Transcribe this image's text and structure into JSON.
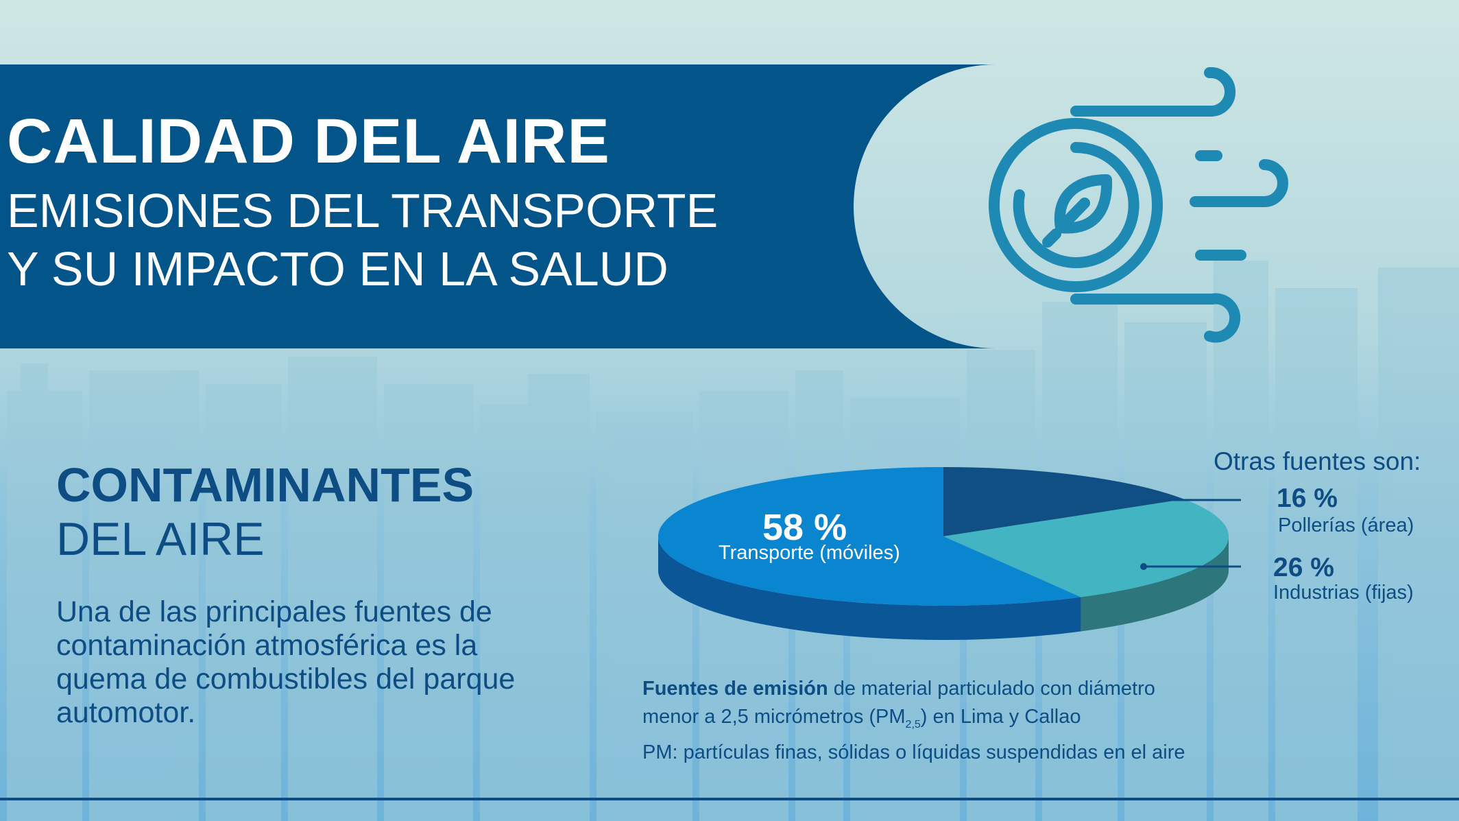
{
  "banner": {
    "title": "CALIDAD DEL AIRE",
    "subtitle_line1": "EMISIONES DEL TRANSPORTE",
    "subtitle_line2": "Y SU IMPACTO EN LA SALUD"
  },
  "section": {
    "title": "CONTAMINANTES",
    "subtitle": "DEL AIRE",
    "body": "Una de las principales fuentes de contaminación atmosférica es la quema de combustibles del parque automotor."
  },
  "legend": {
    "heading": "Otras fuentes son:"
  },
  "caption": {
    "bold": "Fuentes de emisión",
    "line1_rest": " de material particulado con diámetro",
    "line2_before": "menor a 2,5 micrómetros (PM",
    "line2_sub": "2,5",
    "line2_after": ") en Lima y Callao",
    "line3": "PM: partículas finas, sólidas o líquidas suspendidas en el aire"
  },
  "icons": {
    "banner_icon": "leaf-wind-circle-icon"
  },
  "colors": {
    "banner": "#035489",
    "navy_text": "#0d4d84",
    "icon": "#1e8ab4",
    "transport_top": "#0a86d0",
    "transport_side": "#0a5696",
    "industries_top": "#43b4c1",
    "industries_side": "#2d767b",
    "polleria_top": "#0f4f84",
    "polleria_side": "#0d4777"
  },
  "chart_data": {
    "type": "pie",
    "style": "3d",
    "slices": [
      {
        "label": "Transporte (móviles)",
        "value": 58,
        "value_label": "58 %",
        "color": "#0a86d0"
      },
      {
        "label": "Industrias (fijas)",
        "value": 26,
        "value_label": "26 %",
        "color": "#43b4c1"
      },
      {
        "label": "Pollerías (área)",
        "value": 16,
        "value_label": "16 %",
        "color": "#0f4f84"
      }
    ]
  }
}
